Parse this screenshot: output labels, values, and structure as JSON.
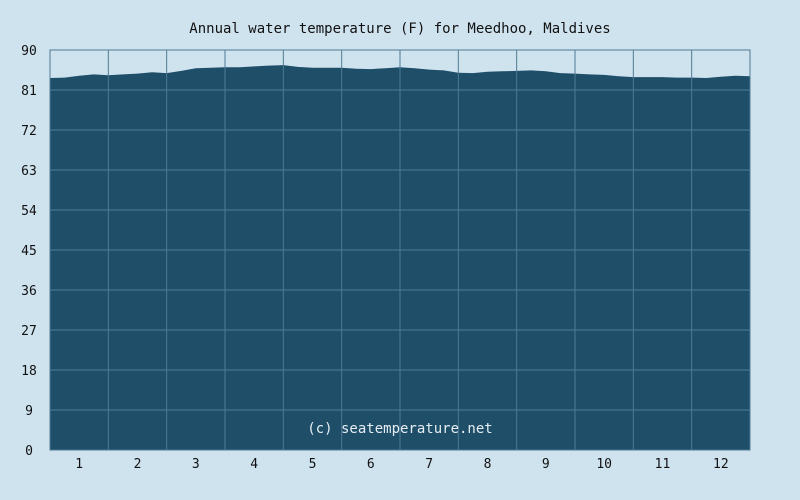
{
  "chart_data": {
    "type": "area",
    "title": "Annual water temperature (F) for Meedhoo, Maldives",
    "xlabel": "",
    "ylabel": "",
    "ylim": [
      0,
      90
    ],
    "y_ticks": [
      "0",
      "9",
      "18",
      "27",
      "36",
      "45",
      "54",
      "63",
      "72",
      "81",
      "90"
    ],
    "x_ticks": [
      "1",
      "2",
      "3",
      "4",
      "5",
      "6",
      "7",
      "8",
      "9",
      "10",
      "11",
      "12"
    ],
    "xlim": [
      1,
      13
    ],
    "grid": true,
    "x": [
      1.0,
      1.25,
      1.5,
      1.75,
      2.0,
      2.25,
      2.5,
      2.75,
      3.0,
      3.25,
      3.5,
      3.75,
      4.0,
      4.25,
      4.5,
      4.75,
      5.0,
      5.25,
      5.5,
      5.75,
      6.0,
      6.25,
      6.5,
      6.75,
      7.0,
      7.25,
      7.5,
      7.75,
      8.0,
      8.25,
      8.5,
      8.75,
      9.0,
      9.25,
      9.5,
      9.75,
      10.0,
      10.25,
      10.5,
      10.75,
      11.0,
      11.25,
      11.5,
      11.75,
      12.0,
      12.25,
      12.5,
      12.75,
      13.0
    ],
    "values": [
      83.7,
      83.8,
      84.2,
      84.5,
      84.3,
      84.5,
      84.7,
      85.0,
      84.8,
      85.3,
      85.9,
      86.0,
      86.1,
      86.1,
      86.3,
      86.5,
      86.6,
      86.2,
      86.0,
      86.0,
      86.0,
      85.8,
      85.7,
      85.9,
      86.1,
      85.9,
      85.6,
      85.4,
      84.9,
      84.8,
      85.1,
      85.2,
      85.3,
      85.4,
      85.2,
      84.8,
      84.7,
      84.5,
      84.4,
      84.1,
      83.9,
      83.9,
      83.9,
      83.8,
      83.8,
      83.7,
      84.0,
      84.2,
      84.1
    ],
    "watermark": "(c) seatemperature.net",
    "colors": {
      "background": "#cfe3ef",
      "fill": "#1f4e69",
      "grid": "#4f7a93",
      "text": "#111111"
    }
  }
}
